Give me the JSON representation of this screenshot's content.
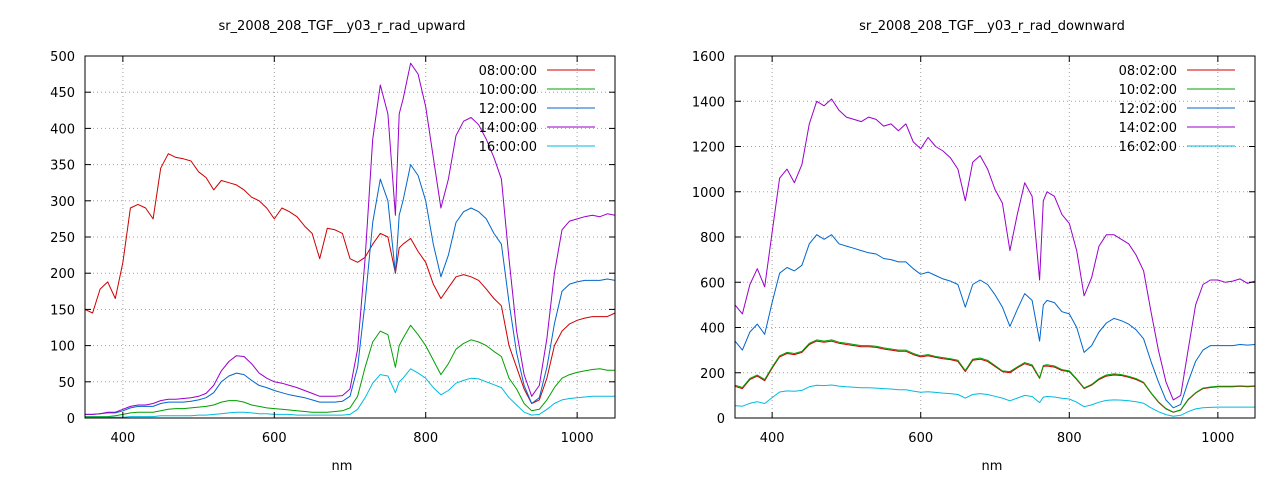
{
  "chart_data": [
    {
      "type": "line",
      "title": "sr_2008_208_TGF__y03_r_rad_upward",
      "xlabel": "nm",
      "ylabel": "",
      "xlim": [
        350,
        1050
      ],
      "ylim": [
        0,
        500
      ],
      "xticks": [
        400,
        600,
        800,
        1000
      ],
      "yticks": [
        0,
        50,
        100,
        150,
        200,
        250,
        300,
        350,
        400,
        450,
        500
      ],
      "grid": true,
      "legend_position": "top-right",
      "x": [
        350,
        360,
        370,
        380,
        390,
        400,
        410,
        420,
        430,
        440,
        450,
        460,
        470,
        480,
        490,
        500,
        510,
        520,
        530,
        540,
        550,
        560,
        570,
        580,
        590,
        600,
        610,
        620,
        630,
        640,
        650,
        660,
        670,
        680,
        690,
        700,
        710,
        720,
        730,
        740,
        750,
        760,
        765,
        770,
        780,
        790,
        800,
        810,
        820,
        830,
        840,
        850,
        860,
        870,
        880,
        890,
        900,
        910,
        920,
        930,
        940,
        950,
        960,
        970,
        980,
        990,
        1000,
        1010,
        1020,
        1030,
        1040,
        1050
      ],
      "series": [
        {
          "name": "08:00:00",
          "color": "#cc0000",
          "values": [
            150,
            145,
            178,
            188,
            165,
            215,
            290,
            295,
            290,
            275,
            345,
            365,
            360,
            358,
            355,
            340,
            332,
            315,
            328,
            325,
            322,
            315,
            305,
            300,
            290,
            275,
            290,
            285,
            278,
            265,
            255,
            220,
            262,
            260,
            255,
            220,
            215,
            222,
            240,
            255,
            250,
            200,
            235,
            240,
            248,
            230,
            215,
            185,
            165,
            180,
            195,
            198,
            195,
            190,
            178,
            165,
            155,
            100,
            70,
            40,
            20,
            25,
            55,
            100,
            120,
            130,
            135,
            138,
            140,
            140,
            140,
            145
          ]
        },
        {
          "name": "10:00:00",
          "color": "#00a000",
          "values": [
            2,
            2,
            2,
            2,
            3,
            5,
            7,
            8,
            8,
            8,
            10,
            12,
            13,
            13,
            14,
            15,
            16,
            18,
            22,
            24,
            24,
            22,
            18,
            16,
            14,
            13,
            12,
            11,
            10,
            9,
            8,
            8,
            8,
            9,
            10,
            14,
            30,
            70,
            105,
            120,
            115,
            70,
            100,
            110,
            128,
            115,
            100,
            80,
            60,
            75,
            95,
            103,
            108,
            105,
            100,
            92,
            85,
            55,
            40,
            20,
            10,
            12,
            25,
            42,
            55,
            60,
            63,
            65,
            67,
            68,
            66,
            66
          ]
        },
        {
          "name": "12:00:00",
          "color": "#0066cc",
          "values": [
            5,
            5,
            6,
            7,
            7,
            10,
            14,
            16,
            16,
            16,
            20,
            22,
            22,
            22,
            23,
            25,
            28,
            35,
            50,
            58,
            62,
            60,
            52,
            45,
            42,
            38,
            35,
            32,
            30,
            28,
            25,
            22,
            22,
            22,
            23,
            30,
            70,
            160,
            270,
            330,
            300,
            200,
            280,
            300,
            350,
            335,
            300,
            240,
            195,
            225,
            270,
            285,
            290,
            285,
            275,
            255,
            240,
            160,
            90,
            45,
            20,
            28,
            70,
            130,
            175,
            185,
            188,
            190,
            190,
            190,
            192,
            190
          ]
        },
        {
          "name": "14:00:00",
          "color": "#9900cc",
          "values": [
            5,
            5,
            6,
            8,
            8,
            12,
            16,
            18,
            18,
            20,
            24,
            26,
            26,
            27,
            28,
            30,
            34,
            45,
            65,
            78,
            86,
            85,
            75,
            62,
            55,
            50,
            48,
            45,
            42,
            38,
            34,
            30,
            30,
            30,
            31,
            40,
            95,
            220,
            385,
            460,
            420,
            280,
            420,
            440,
            490,
            475,
            430,
            360,
            290,
            330,
            390,
            410,
            415,
            405,
            385,
            360,
            330,
            220,
            120,
            60,
            30,
            45,
            110,
            200,
            260,
            272,
            275,
            278,
            280,
            278,
            282,
            280
          ]
        },
        {
          "name": "16:00:00",
          "color": "#00bbdd",
          "values": [
            1,
            1,
            1,
            1,
            1,
            1,
            2,
            2,
            2,
            2,
            3,
            3,
            3,
            3,
            3,
            4,
            4,
            5,
            6,
            7,
            8,
            8,
            7,
            6,
            6,
            5,
            5,
            5,
            4,
            4,
            4,
            4,
            4,
            4,
            4,
            5,
            12,
            28,
            48,
            60,
            58,
            35,
            50,
            55,
            68,
            62,
            55,
            42,
            32,
            38,
            48,
            52,
            55,
            54,
            50,
            46,
            42,
            28,
            18,
            8,
            4,
            5,
            12,
            20,
            25,
            27,
            28,
            29,
            30,
            30,
            30,
            30
          ]
        }
      ]
    },
    {
      "type": "line",
      "title": "sr_2008_208_TGF__y03_r_rad_downward",
      "xlabel": "nm",
      "ylabel": "",
      "xlim": [
        350,
        1050
      ],
      "ylim": [
        0,
        1600
      ],
      "xticks": [
        400,
        600,
        800,
        1000
      ],
      "yticks": [
        0,
        200,
        400,
        600,
        800,
        1000,
        1200,
        1400,
        1600
      ],
      "grid": true,
      "legend_position": "top-right",
      "x": [
        350,
        360,
        370,
        380,
        390,
        400,
        410,
        420,
        430,
        440,
        450,
        460,
        470,
        480,
        490,
        500,
        510,
        520,
        530,
        540,
        550,
        560,
        570,
        580,
        590,
        600,
        610,
        620,
        630,
        640,
        650,
        660,
        670,
        680,
        690,
        700,
        710,
        720,
        730,
        740,
        750,
        760,
        765,
        770,
        780,
        790,
        800,
        810,
        820,
        830,
        840,
        850,
        860,
        870,
        880,
        890,
        900,
        910,
        920,
        930,
        940,
        950,
        960,
        970,
        980,
        990,
        1000,
        1010,
        1020,
        1030,
        1040,
        1050
      ],
      "series": [
        {
          "name": "08:02:00",
          "color": "#cc0000",
          "values": [
            140,
            130,
            170,
            185,
            165,
            220,
            270,
            285,
            280,
            290,
            325,
            340,
            335,
            340,
            330,
            325,
            320,
            315,
            315,
            312,
            305,
            300,
            295,
            295,
            280,
            270,
            275,
            268,
            262,
            258,
            250,
            205,
            255,
            260,
            250,
            228,
            205,
            200,
            222,
            240,
            230,
            175,
            228,
            230,
            225,
            210,
            205,
            170,
            130,
            145,
            170,
            185,
            190,
            188,
            180,
            170,
            155,
            110,
            70,
            40,
            25,
            35,
            80,
            110,
            130,
            135,
            138,
            138,
            138,
            140,
            138,
            140
          ]
        },
        {
          "name": "10:02:00",
          "color": "#00a000",
          "values": [
            145,
            135,
            175,
            190,
            170,
            225,
            275,
            290,
            285,
            295,
            330,
            345,
            340,
            345,
            335,
            330,
            325,
            320,
            320,
            317,
            310,
            305,
            300,
            300,
            285,
            275,
            280,
            272,
            267,
            262,
            255,
            210,
            260,
            265,
            255,
            232,
            208,
            205,
            226,
            245,
            235,
            178,
            232,
            235,
            230,
            214,
            208,
            173,
            133,
            148,
            174,
            190,
            195,
            192,
            184,
            174,
            158,
            112,
            72,
            42,
            26,
            36,
            82,
            112,
            132,
            137,
            140,
            140,
            140,
            142,
            140,
            142
          ]
        },
        {
          "name": "12:02:00",
          "color": "#0066cc",
          "values": [
            340,
            300,
            380,
            415,
            370,
            510,
            640,
            665,
            650,
            675,
            770,
            810,
            790,
            810,
            770,
            760,
            750,
            740,
            730,
            725,
            705,
            700,
            690,
            690,
            660,
            635,
            645,
            630,
            615,
            605,
            590,
            490,
            590,
            610,
            590,
            545,
            490,
            405,
            480,
            550,
            520,
            340,
            500,
            520,
            510,
            470,
            460,
            400,
            290,
            320,
            380,
            420,
            440,
            430,
            415,
            390,
            350,
            250,
            160,
            80,
            45,
            60,
            160,
            250,
            300,
            320,
            320,
            320,
            320,
            325,
            322,
            325
          ]
        },
        {
          "name": "14:02:00",
          "color": "#9900cc",
          "values": [
            500,
            460,
            590,
            660,
            580,
            820,
            1060,
            1100,
            1040,
            1120,
            1300,
            1400,
            1380,
            1410,
            1360,
            1330,
            1320,
            1310,
            1330,
            1320,
            1290,
            1300,
            1270,
            1300,
            1220,
            1190,
            1240,
            1200,
            1180,
            1150,
            1100,
            960,
            1130,
            1160,
            1100,
            1010,
            950,
            740,
            900,
            1040,
            980,
            610,
            960,
            1000,
            980,
            900,
            860,
            740,
            540,
            620,
            760,
            810,
            810,
            790,
            770,
            720,
            650,
            470,
            300,
            160,
            80,
            100,
            300,
            500,
            590,
            610,
            610,
            600,
            605,
            615,
            595,
            605
          ]
        },
        {
          "name": "16:02:00",
          "color": "#00bbdd",
          "values": [
            55,
            52,
            65,
            72,
            64,
            90,
            115,
            120,
            118,
            122,
            138,
            145,
            143,
            146,
            141,
            138,
            136,
            134,
            134,
            132,
            130,
            128,
            125,
            125,
            119,
            114,
            116,
            113,
            110,
            108,
            104,
            88,
            104,
            108,
            104,
            96,
            88,
            76,
            88,
            100,
            95,
            68,
            92,
            95,
            93,
            87,
            84,
            70,
            50,
            58,
            70,
            78,
            80,
            79,
            76,
            72,
            65,
            45,
            28,
            15,
            8,
            12,
            28,
            40,
            45,
            47,
            48,
            48,
            48,
            48,
            48,
            48
          ]
        }
      ]
    }
  ]
}
